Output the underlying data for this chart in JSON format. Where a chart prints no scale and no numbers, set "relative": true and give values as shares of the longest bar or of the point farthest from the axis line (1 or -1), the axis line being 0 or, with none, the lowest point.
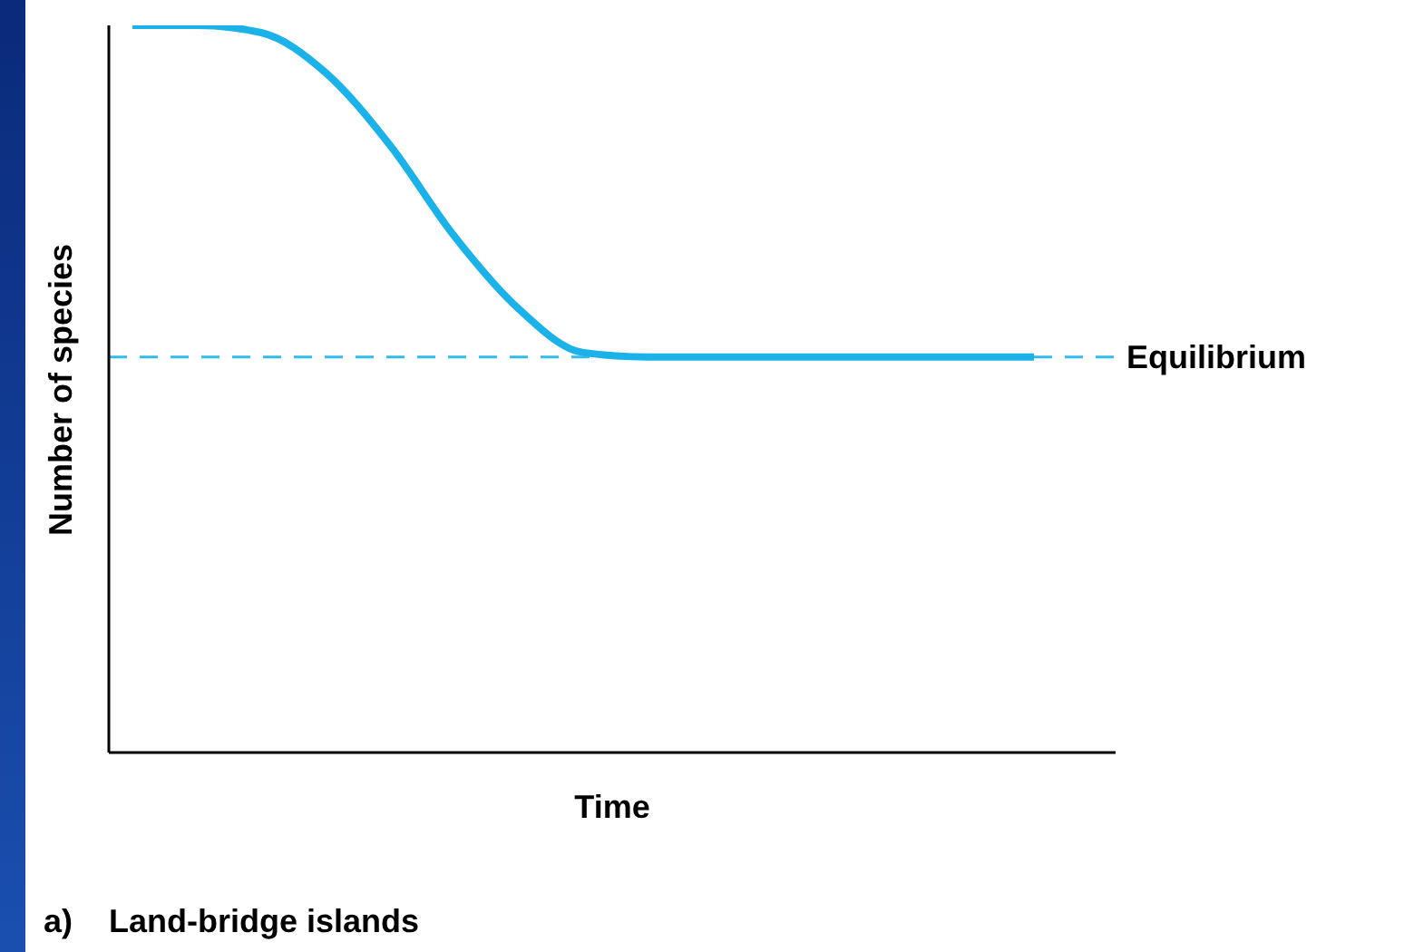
{
  "chart_data": {
    "type": "line",
    "relative": true,
    "xlabel": "Time",
    "ylabel": "Number of species",
    "annotations": [
      "a)    Land-bridge islands"
    ],
    "categories": [
      null,
      null,
      null,
      null,
      null,
      null,
      null,
      null,
      null,
      null,
      null,
      null,
      null,
      null,
      null
    ],
    "series": [
      {
        "color": "#1ab2e8",
        "values": [
          1,
          1,
          0.99,
          0.935,
          0.835,
          0.71,
          0.61,
          0.55,
          0.544,
          0.544,
          0.544,
          0.544,
          0.544,
          0.544,
          0.544
        ]
      }
    ],
    "ref_lines": [
      {
        "axis": "y",
        "value": 0.544,
        "label": "Equilibrium",
        "color": "#33bbee",
        "line_style": "dashed"
      }
    ],
    "grid": false,
    "legend": false,
    "marker": "none",
    "line_style": "solid"
  }
}
